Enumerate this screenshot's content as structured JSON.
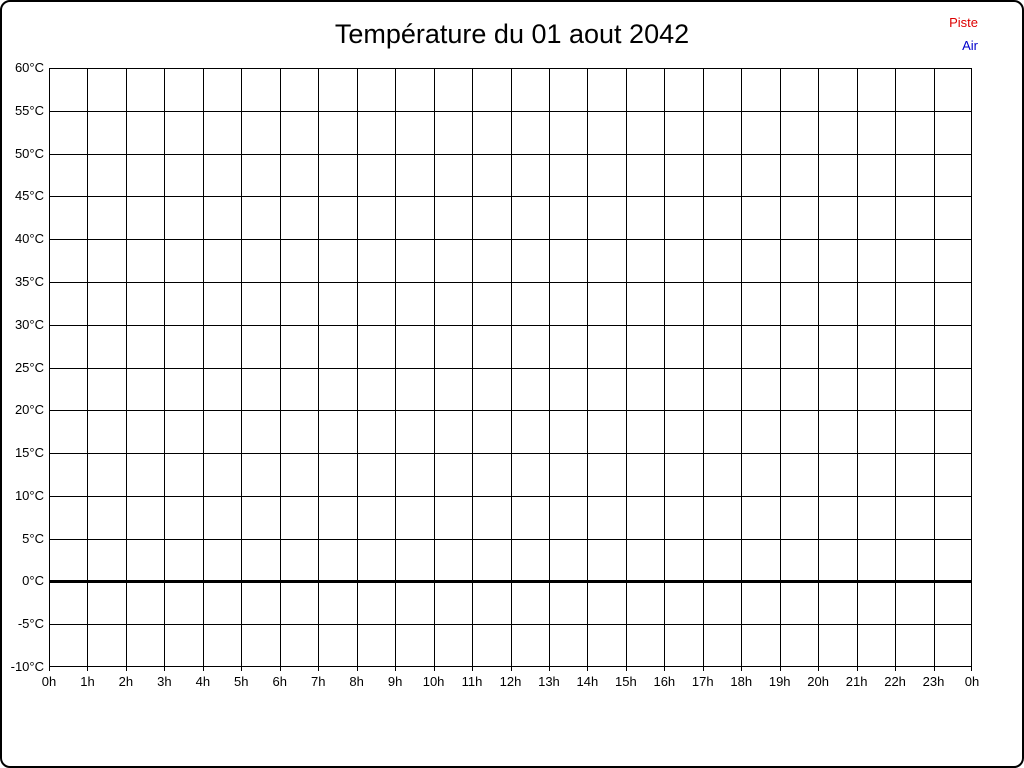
{
  "page": {
    "background": "#ffffff",
    "border_color": "#000000"
  },
  "chart_data": {
    "type": "line",
    "title": "Température du 01 aout 2042",
    "series": [
      {
        "name": "Piste",
        "color": "#dd0000",
        "values": []
      },
      {
        "name": "Air",
        "color": "#0000cc",
        "values": []
      }
    ],
    "xlim": [
      0,
      24
    ],
    "ylim": [
      -10,
      60
    ],
    "x_tick_values": [
      0,
      1,
      2,
      3,
      4,
      5,
      6,
      7,
      8,
      9,
      10,
      11,
      12,
      13,
      14,
      15,
      16,
      17,
      18,
      19,
      20,
      21,
      22,
      23,
      24
    ],
    "x_tick_labels": [
      "0h",
      "1h",
      "2h",
      "3h",
      "4h",
      "5h",
      "6h",
      "7h",
      "8h",
      "9h",
      "10h",
      "11h",
      "12h",
      "13h",
      "14h",
      "15h",
      "16h",
      "17h",
      "18h",
      "19h",
      "20h",
      "21h",
      "22h",
      "23h",
      "0h"
    ],
    "y_tick_values": [
      60,
      55,
      50,
      45,
      40,
      35,
      30,
      25,
      20,
      15,
      10,
      5,
      0,
      -5,
      -10
    ],
    "y_tick_labels": [
      "60°C",
      "55°C",
      "50°C",
      "45°C",
      "40°C",
      "35°C",
      "30°C",
      "25°C",
      "20°C",
      "15°C",
      "10°C",
      "5°C",
      "0°C",
      "-5°C",
      "-10°C"
    ],
    "grid": true,
    "zero_line_value": 0,
    "zero_line_color": "#000000",
    "legend_position": "top-right"
  }
}
